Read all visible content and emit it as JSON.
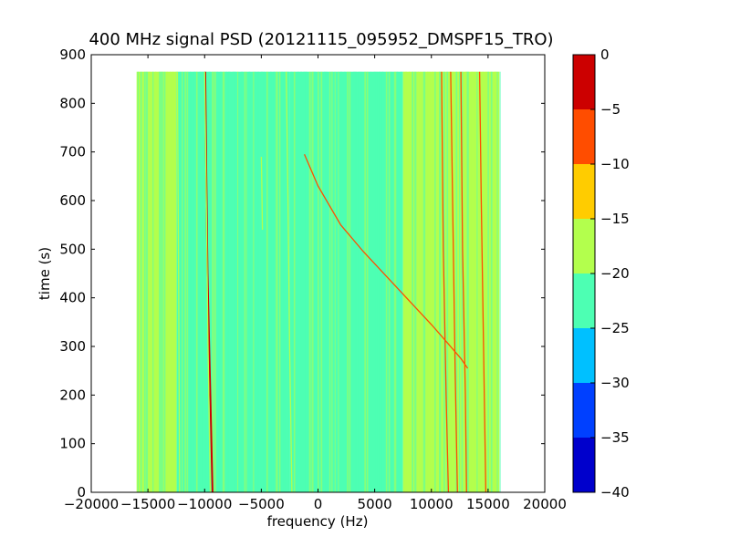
{
  "chart_data": {
    "type": "heatmap",
    "title": "400 MHz signal PSD (20121115_095952_DMSPF15_TRO)",
    "xlabel": "frequency (Hz)",
    "ylabel": "time (s)",
    "xlim": [
      -20000,
      20000
    ],
    "ylim": [
      0,
      900
    ],
    "x_ticks": [
      -20000,
      -15000,
      -10000,
      -5000,
      0,
      5000,
      10000,
      15000,
      20000
    ],
    "y_ticks": [
      0,
      100,
      200,
      300,
      400,
      500,
      600,
      700,
      800,
      900
    ],
    "data_extent": {
      "x": [
        -16000,
        16000
      ],
      "y": [
        0,
        865
      ]
    },
    "grid": false,
    "colorbar": {
      "range": [
        -40,
        0
      ],
      "ticks": [
        0,
        -5,
        -10,
        -15,
        -20,
        -25,
        -30,
        -35,
        -40
      ],
      "levels": [
        {
          "from": -40,
          "to": -35,
          "color": "#0000cc"
        },
        {
          "from": -35,
          "to": -30,
          "color": "#0040ff"
        },
        {
          "from": -30,
          "to": -25,
          "color": "#00c0ff"
        },
        {
          "from": -25,
          "to": -20,
          "color": "#4dffb3"
        },
        {
          "from": -20,
          "to": -15,
          "color": "#b3ff4d"
        },
        {
          "from": -15,
          "to": -10,
          "color": "#ffcc00"
        },
        {
          "from": -10,
          "to": -5,
          "color": "#ff4d00"
        },
        {
          "from": -5,
          "to": 0,
          "color": "#cc0000"
        }
      ]
    },
    "regions": [
      {
        "x": [
          -16000,
          -12500
        ],
        "level": -17.5
      },
      {
        "x": [
          -12500,
          -2500
        ],
        "level": -22.5
      },
      {
        "x": [
          -2500,
          7500
        ],
        "level": -22.5
      },
      {
        "x": [
          7500,
          16000
        ],
        "level": -17.5
      }
    ],
    "tracks": [
      {
        "level": -2.5,
        "points": [
          [
            -9300,
            0
          ],
          [
            -9500,
            200
          ],
          [
            -9750,
            450
          ],
          [
            -9850,
            650
          ],
          [
            -9950,
            865
          ]
        ]
      },
      {
        "level": -17.5,
        "points": [
          [
            -9500,
            0
          ],
          [
            -9700,
            300
          ],
          [
            -9850,
            600
          ],
          [
            -10000,
            865
          ]
        ]
      },
      {
        "level": -7.5,
        "points": [
          [
            11500,
            0
          ],
          [
            11300,
            200
          ],
          [
            11050,
            500
          ],
          [
            10900,
            865
          ]
        ]
      },
      {
        "level": -7.5,
        "points": [
          [
            12300,
            0
          ],
          [
            12100,
            250
          ],
          [
            11900,
            550
          ],
          [
            11700,
            865
          ]
        ]
      },
      {
        "level": -7.5,
        "points": [
          [
            13100,
            0
          ],
          [
            13000,
            200
          ],
          [
            12750,
            500
          ],
          [
            12600,
            865
          ]
        ]
      },
      {
        "level": -7.5,
        "points": [
          [
            14800,
            0
          ],
          [
            14600,
            300
          ],
          [
            14400,
            600
          ],
          [
            14250,
            865
          ]
        ]
      },
      {
        "level": -17.5,
        "points": [
          [
            -2300,
            0
          ],
          [
            -2500,
            300
          ],
          [
            -2650,
            600
          ],
          [
            -2800,
            865
          ]
        ]
      },
      {
        "level": -17.5,
        "points": [
          [
            -12200,
            0
          ],
          [
            -12300,
            450
          ],
          [
            -12400,
            865
          ]
        ]
      },
      {
        "level": -17.5,
        "points": [
          [
            -4900,
            540
          ],
          [
            -4950,
            620
          ],
          [
            -5000,
            690
          ]
        ]
      },
      {
        "level": -7.5,
        "points": [
          [
            -1200,
            695
          ],
          [
            0,
            630
          ],
          [
            2000,
            550
          ],
          [
            4000,
            495
          ],
          [
            6000,
            445
          ],
          [
            8000,
            395
          ],
          [
            10000,
            345
          ],
          [
            11500,
            305
          ],
          [
            12600,
            275
          ],
          [
            13200,
            255
          ]
        ]
      }
    ]
  }
}
